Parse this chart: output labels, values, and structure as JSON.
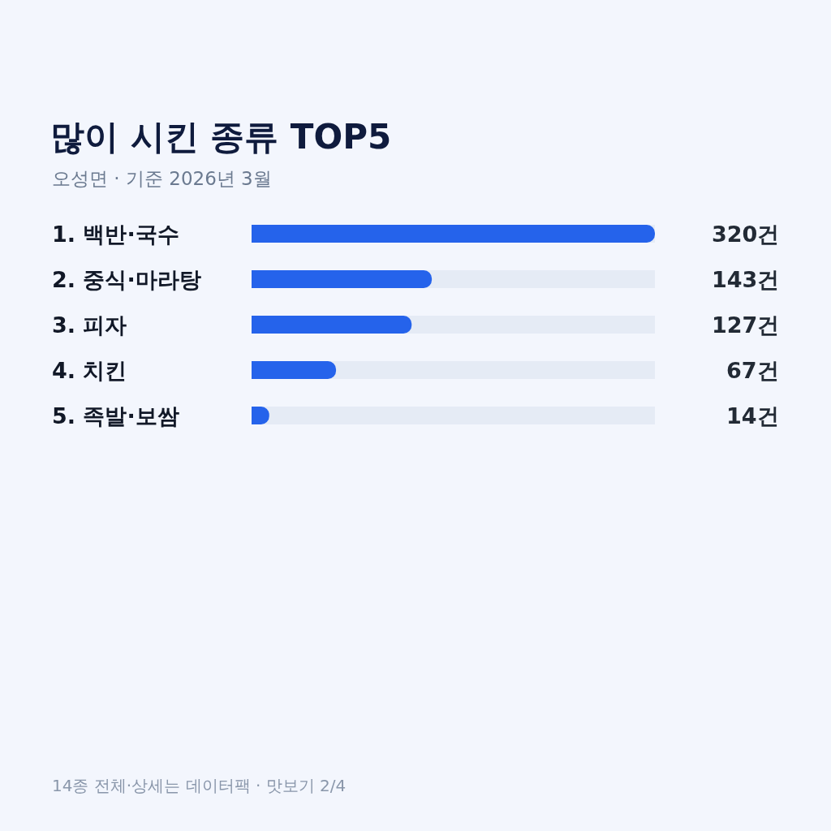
{
  "chart_data": {
    "type": "bar",
    "orientation": "horizontal",
    "title": "많이 시킨 종류 TOP5",
    "subtitle": "오성면 · 기준 2026년 3월",
    "categories": [
      "1. 백반·국수",
      "2. 중식·마라탕",
      "3. 피자",
      "4. 치킨",
      "5. 족발·보쌈"
    ],
    "values": [
      320,
      143,
      127,
      67,
      14
    ],
    "value_labels": [
      "320건",
      "143건",
      "127건",
      "67건",
      "14건"
    ],
    "color": "#2563eb",
    "annotations": [
      "14종 전체·상세는 데이터팩 · 맛보기 2/4"
    ],
    "grid": false,
    "legend": false
  }
}
